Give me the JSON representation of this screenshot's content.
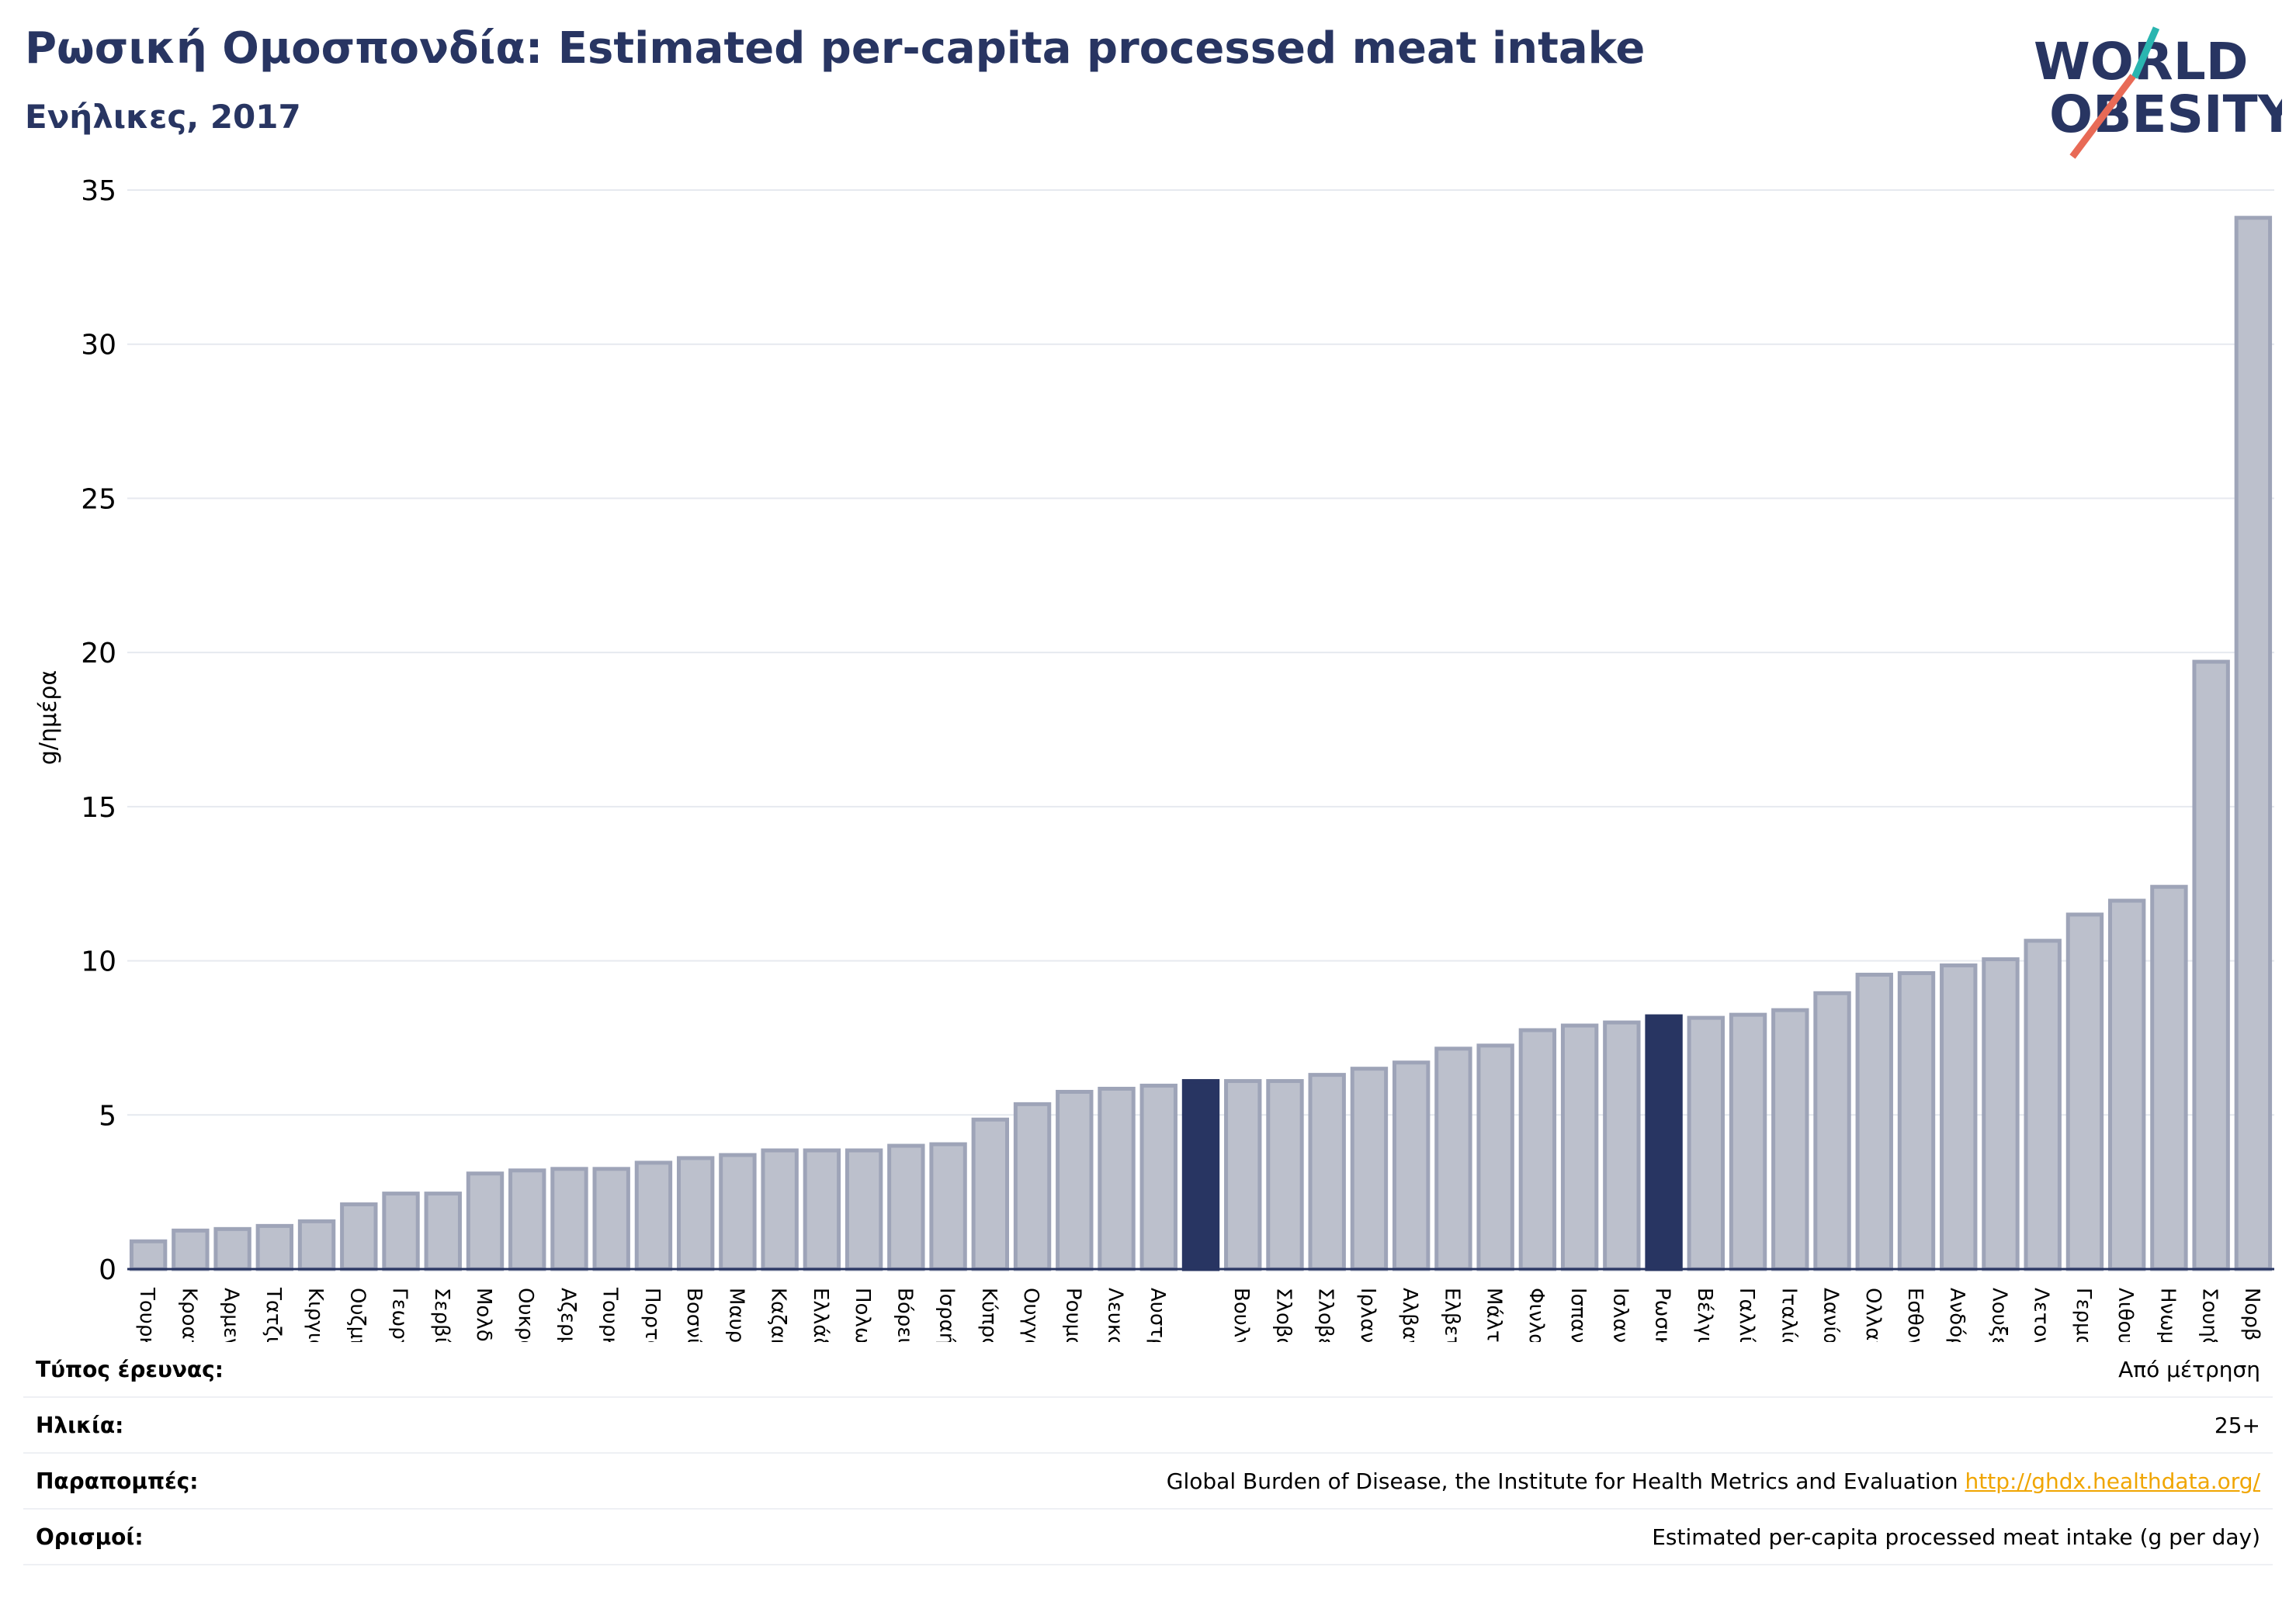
{
  "title": "Ρωσική Ομοσπονδία: Estimated per-capita processed meat intake",
  "subtitle": "Ενήλικες, 2017",
  "logo": {
    "line1": "WORLD",
    "line2": "OBESITY",
    "accent_teal": "#2ab5b0",
    "accent_red": "#e86a56",
    "text_color": "#283562"
  },
  "colors": {
    "bar": "#bcc0cc",
    "bar_stroke": "#9ea4b8",
    "highlight": "#283562",
    "grid": "#e6e9ef",
    "axis": "#283562"
  },
  "chart_data": {
    "type": "bar",
    "ylabel": "g/ημέρα",
    "ylim": [
      0,
      35
    ],
    "yticks": [
      0,
      5,
      10,
      15,
      20,
      25,
      30,
      35
    ],
    "grid": true,
    "categories": [
      "Τουρκία",
      "Κροατία",
      "Αρμενία",
      "Τατζικιστάν",
      "Κιργιστάν",
      "Ουζμπεκιστάν",
      "Γεωργία",
      "Σερβία",
      "Μολδαβία",
      "Ουκρανία",
      "Αζερμπαϊτζάν",
      "Τουρκμενιστάν",
      "Πορτογαλία",
      "Βοσνία και Ερζεγοβίνη",
      "Μαυροβούνιο",
      "Καζακστάν",
      "Ελλάδα",
      "Πολωνία",
      "Βόρεια Μακεδονία",
      "Ισραήλ",
      "Κύπρος",
      "Ουγγαρία",
      "Ρουμανία",
      "Λευκορωσία",
      "Αυστρία",
      "",
      "Βουλγαρία",
      "Σλοβακία",
      "Σλοβενία",
      "Ιρλανδία",
      "Αλβανία",
      "Ελβετία",
      "Μάλτα",
      "Φινλανδία",
      "Ισπανία",
      "Ισλανδία",
      "Ρωσική Ομοσπονδία",
      "Βέλγιο",
      "Γαλλία",
      "Ιταλία",
      "Δανία",
      "Ολλανδία",
      "Εσθονία",
      "Ανδόρα",
      "Λουξεμβούργο",
      "Λετονία",
      "Γερμανία",
      "Λιθουανία",
      "Ηνωμένο Βασίλειο",
      "Σουηδία",
      "Νορβηγία"
    ],
    "values": [
      0.9,
      1.25,
      1.3,
      1.4,
      1.55,
      2.1,
      2.45,
      2.45,
      3.1,
      3.2,
      3.25,
      3.25,
      3.45,
      3.6,
      3.7,
      3.85,
      3.85,
      3.85,
      4.0,
      4.05,
      4.85,
      5.35,
      5.75,
      5.85,
      5.95,
      6.1,
      6.1,
      6.1,
      6.3,
      6.5,
      6.7,
      7.15,
      7.25,
      7.75,
      7.9,
      8.0,
      8.2,
      8.15,
      8.25,
      8.4,
      8.95,
      9.55,
      9.6,
      9.85,
      10.05,
      10.65,
      11.5,
      11.95,
      12.4,
      19.7,
      34.1
    ],
    "highlight": [
      25,
      36
    ]
  },
  "meta": [
    {
      "label": "Τύπος έρευνας:",
      "value": "Από μέτρηση"
    },
    {
      "label": "Ηλικία:",
      "value": "25+"
    },
    {
      "label": "Παραπομπές:",
      "value": "Global Burden of Disease, the Institute for Health Metrics and Evaluation",
      "link": "http://ghdx.healthdata.org/"
    },
    {
      "label": "Ορισμοί:",
      "value": "Estimated per-capita processed meat intake (g per day)"
    }
  ]
}
